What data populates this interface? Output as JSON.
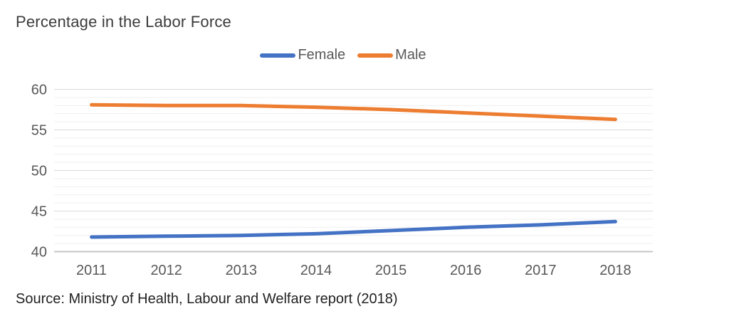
{
  "page": {
    "title": "Percentage in the Labor Force",
    "source": "Source: Ministry of Health, Labour and Welfare report (2018)"
  },
  "legend": {
    "items": [
      {
        "label": "Female",
        "color": "#4472C4"
      },
      {
        "label": "Male",
        "color": "#ED7D31"
      }
    ]
  },
  "chart_data": {
    "type": "line",
    "title": "Percentage in the Labor Force",
    "categories": [
      "2011",
      "2012",
      "2013",
      "2014",
      "2015",
      "2016",
      "2017",
      "2018"
    ],
    "series": [
      {
        "name": "Female",
        "color": "#4472C4",
        "values": [
          41.8,
          41.9,
          42.0,
          42.2,
          42.6,
          43.0,
          43.3,
          43.7
        ]
      },
      {
        "name": "Male",
        "color": "#ED7D31",
        "values": [
          58.1,
          58.0,
          58.0,
          57.8,
          57.5,
          57.1,
          56.7,
          56.3
        ]
      }
    ],
    "xlabel": "",
    "ylabel": "",
    "ylim": [
      40,
      60
    ],
    "y_major_ticks": [
      40,
      45,
      50,
      55,
      60
    ],
    "y_minor_unit": 1,
    "grid": true,
    "legend_position": "top",
    "source_note": "Source: Ministry of Health, Labour and Welfare report (2018)"
  },
  "style": {
    "title_color": "#3b3b3b",
    "tick_label_color": "#595959",
    "source_color": "#222222",
    "major_grid_color": "#D9D9D9",
    "minor_grid_color": "#F1F1F1",
    "axis_line_color": "#BFBFBF",
    "background": "#FFFFFF"
  }
}
